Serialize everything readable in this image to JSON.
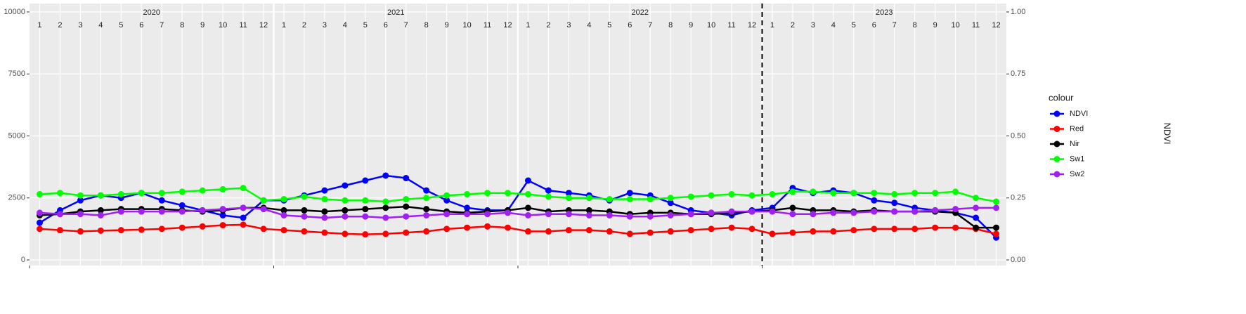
{
  "chart_data": {
    "type": "line",
    "facet_labels": [
      "2020",
      "2021",
      "2022",
      "2023"
    ],
    "categories": [
      "1",
      "2",
      "3",
      "4",
      "5",
      "6",
      "7",
      "8",
      "9",
      "10",
      "11",
      "12",
      "1",
      "2",
      "3",
      "4",
      "5",
      "6",
      "7",
      "8",
      "9",
      "10",
      "11",
      "12",
      "1",
      "2",
      "3",
      "4",
      "5",
      "6",
      "7",
      "8",
      "9",
      "10",
      "11",
      "12",
      "1",
      "2",
      "3",
      "4",
      "5",
      "6",
      "7",
      "8",
      "9",
      "10",
      "11",
      "12"
    ],
    "ylim": [
      0,
      10000
    ],
    "yticks": [
      0,
      2500,
      5000,
      7500,
      10000
    ],
    "y2lim": [
      0,
      1
    ],
    "y2ticks": [
      {
        "value": 0,
        "label": "0.00"
      },
      {
        "value": 0.25,
        "label": "0.25"
      },
      {
        "value": 0.5,
        "label": "0.50"
      },
      {
        "value": 0.75,
        "label": "0.75"
      },
      {
        "value": 1,
        "label": "1.00"
      }
    ],
    "y2_label": "NDVI",
    "legend_title": "colour",
    "legend_position": "right",
    "grid": true,
    "vline": {
      "category_index": 36,
      "linetype": "dashed"
    },
    "series": [
      {
        "name": "NDVI",
        "color": "#0000ff",
        "axis": "y2",
        "values": [
          0.15,
          0.2,
          0.24,
          0.26,
          0.25,
          0.27,
          0.24,
          0.22,
          0.2,
          0.18,
          0.17,
          0.24,
          0.24,
          0.26,
          0.28,
          0.3,
          0.32,
          0.34,
          0.33,
          0.28,
          0.24,
          0.21,
          0.2,
          0.2,
          0.32,
          0.28,
          0.27,
          0.26,
          0.24,
          0.27,
          0.26,
          0.23,
          0.2,
          0.19,
          0.18,
          0.2,
          0.21,
          0.29,
          0.27,
          0.28,
          0.27,
          0.24,
          0.23,
          0.21,
          0.2,
          0.19,
          0.17,
          0.09
        ]
      },
      {
        "name": "Red",
        "color": "#ff0000",
        "values": [
          1250,
          1200,
          1150,
          1180,
          1200,
          1220,
          1250,
          1300,
          1350,
          1400,
          1420,
          1250,
          1200,
          1150,
          1100,
          1050,
          1030,
          1050,
          1100,
          1150,
          1250,
          1300,
          1350,
          1300,
          1150,
          1150,
          1200,
          1200,
          1150,
          1050,
          1100,
          1150,
          1200,
          1250,
          1300,
          1250,
          1050,
          1100,
          1150,
          1150,
          1200,
          1250,
          1250,
          1250,
          1300,
          1300,
          1250,
          1050
        ]
      },
      {
        "name": "Nir",
        "color": "#000000",
        "values": [
          1800,
          1850,
          1950,
          2000,
          2050,
          2050,
          2050,
          2000,
          1950,
          2000,
          2100,
          2100,
          2000,
          2000,
          1950,
          2000,
          2050,
          2100,
          2150,
          2050,
          1950,
          1900,
          1950,
          2000,
          2100,
          1950,
          2000,
          2000,
          1950,
          1850,
          1900,
          1900,
          1850,
          1850,
          1900,
          1950,
          2000,
          2100,
          2000,
          2000,
          1950,
          2000,
          1950,
          1950,
          1950,
          1900,
          1300,
          1300
        ]
      },
      {
        "name": "Sw1",
        "color": "#00ff00",
        "values": [
          2650,
          2700,
          2600,
          2600,
          2650,
          2700,
          2700,
          2750,
          2800,
          2850,
          2900,
          2400,
          2450,
          2550,
          2450,
          2400,
          2400,
          2350,
          2450,
          2500,
          2600,
          2650,
          2700,
          2700,
          2650,
          2550,
          2500,
          2500,
          2450,
          2450,
          2450,
          2500,
          2550,
          2600,
          2650,
          2600,
          2650,
          2750,
          2750,
          2700,
          2700,
          2700,
          2650,
          2700,
          2700,
          2750,
          2500,
          2350
        ]
      },
      {
        "name": "Sw2",
        "color": "#a020f0",
        "values": [
          1900,
          1850,
          1850,
          1800,
          1950,
          1950,
          1950,
          1950,
          2000,
          2050,
          2100,
          2050,
          1800,
          1750,
          1700,
          1750,
          1750,
          1700,
          1750,
          1800,
          1850,
          1850,
          1850,
          1900,
          1800,
          1850,
          1850,
          1800,
          1800,
          1750,
          1750,
          1800,
          1850,
          1900,
          1950,
          1950,
          1950,
          1850,
          1850,
          1900,
          1900,
          1950,
          1950,
          1950,
          2000,
          2050,
          2100,
          2100
        ]
      }
    ]
  }
}
